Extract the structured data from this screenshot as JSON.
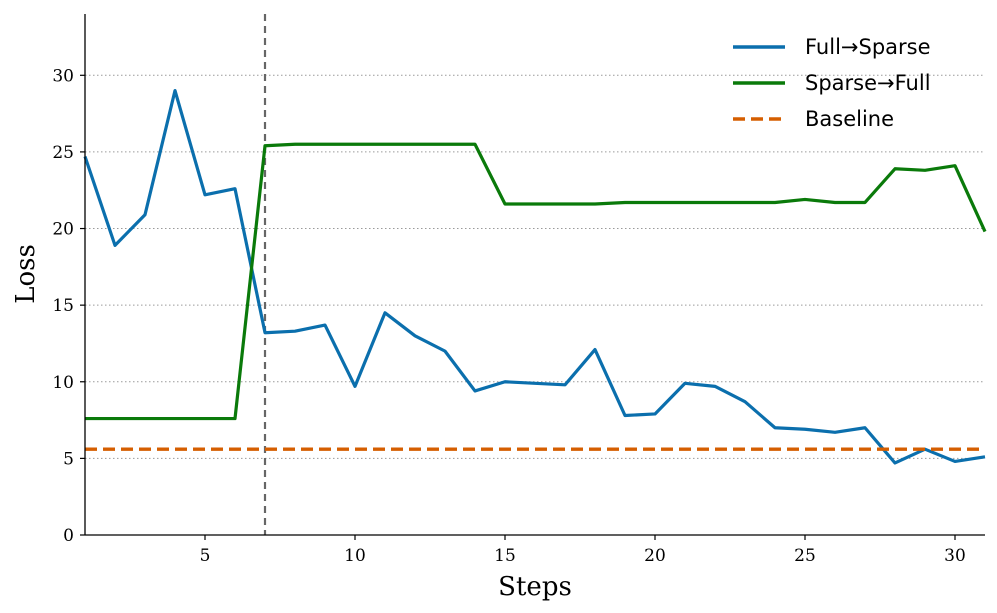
{
  "chart_data": {
    "type": "line",
    "xlabel": "Steps",
    "ylabel": "Loss",
    "xlim": [
      1,
      31
    ],
    "ylim": [
      0,
      34
    ],
    "x_ticks": [
      5,
      10,
      15,
      20,
      25,
      30
    ],
    "y_ticks": [
      0,
      5,
      10,
      15,
      20,
      25,
      30
    ],
    "grid": "horizontal dotted",
    "legend_position": "top-right",
    "vline": {
      "x": 7,
      "color": "#666666",
      "style": "dashed"
    },
    "series": [
      {
        "name": "Full→Sparse",
        "color": "#0b6fad",
        "style": "solid",
        "x": [
          1,
          2,
          3,
          4,
          5,
          6,
          7,
          8,
          9,
          10,
          11,
          12,
          13,
          14,
          15,
          16,
          17,
          18,
          19,
          20,
          21,
          22,
          23,
          24,
          25,
          26,
          27,
          28,
          29,
          30,
          31
        ],
        "values": [
          24.7,
          18.9,
          20.9,
          29.0,
          22.2,
          22.6,
          13.2,
          13.3,
          13.7,
          9.7,
          14.5,
          13.0,
          12.0,
          9.4,
          10.0,
          9.9,
          9.8,
          12.1,
          7.8,
          7.9,
          9.9,
          9.7,
          8.7,
          7.0,
          6.9,
          6.7,
          7.0,
          4.7,
          5.6,
          4.8,
          5.1
        ]
      },
      {
        "name": "Sparse→Full",
        "color": "#0a7a0a",
        "style": "solid",
        "x": [
          1,
          2,
          3,
          4,
          5,
          6,
          7,
          8,
          9,
          10,
          11,
          12,
          13,
          14,
          15,
          16,
          17,
          18,
          19,
          20,
          21,
          22,
          23,
          24,
          25,
          26,
          27,
          28,
          29,
          30,
          31
        ],
        "values": [
          7.6,
          7.6,
          7.6,
          7.6,
          7.6,
          7.6,
          25.4,
          25.5,
          25.5,
          25.5,
          25.5,
          25.5,
          25.5,
          25.5,
          21.6,
          21.6,
          21.6,
          21.6,
          21.7,
          21.7,
          21.7,
          21.7,
          21.7,
          21.7,
          21.9,
          21.7,
          21.7,
          23.9,
          23.8,
          24.1,
          19.8
        ]
      },
      {
        "name": "Baseline",
        "color": "#d55e00",
        "style": "dashed",
        "x": [
          1,
          31
        ],
        "values": [
          5.6,
          5.6
        ]
      }
    ]
  }
}
